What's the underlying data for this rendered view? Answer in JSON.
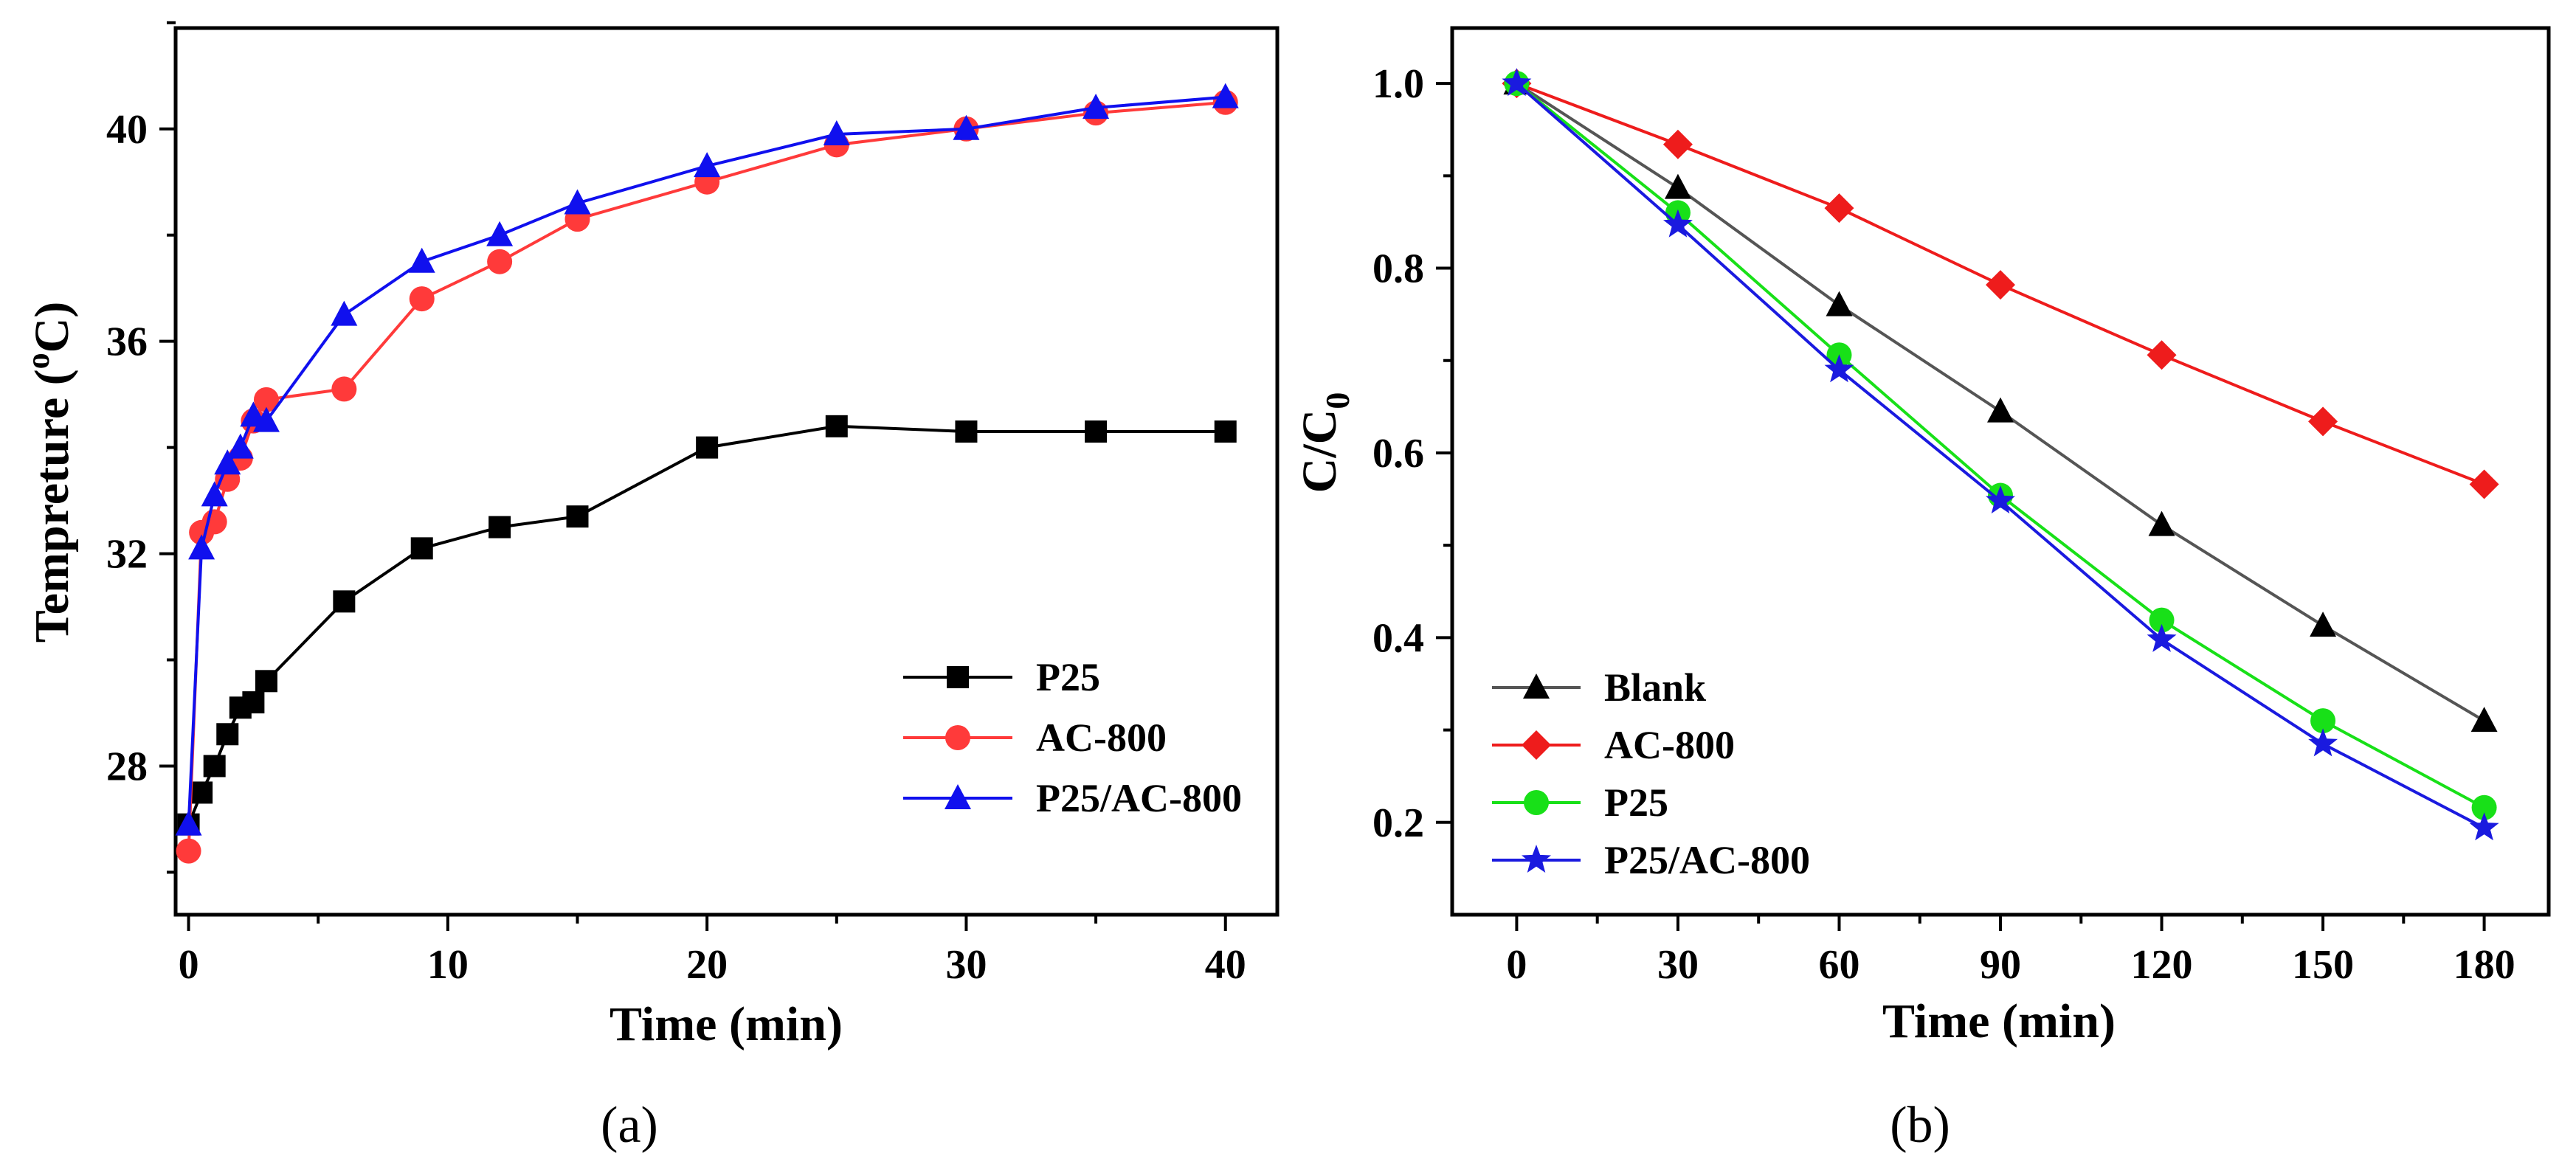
{
  "chart_data": [
    {
      "panel": "(a)",
      "type": "line",
      "xlabel": "Time (min)",
      "ylabel": "Tempreture (",
      "ylabel_sup": "o",
      "ylabel_end": "C)",
      "xlim": [
        -0.5,
        42
      ],
      "ylim": [
        25.2,
        41.9
      ],
      "xticks": [
        0,
        10,
        20,
        30,
        40
      ],
      "yticks": [
        28,
        32,
        36,
        40
      ],
      "legend_position": "bottom-right",
      "series": [
        {
          "name": "P25",
          "color": "#000000",
          "marker": "square",
          "x": [
            0,
            0.5,
            1,
            1.5,
            2,
            2.5,
            3,
            6,
            9,
            12,
            15,
            20,
            25,
            30,
            35,
            40
          ],
          "y": [
            26.9,
            27.5,
            28.0,
            28.6,
            29.1,
            29.2,
            29.6,
            31.1,
            32.1,
            32.5,
            32.7,
            34.0,
            34.4,
            34.3,
            34.3,
            34.3
          ]
        },
        {
          "name": "AC-800",
          "color": "#ff3a3a",
          "marker": "circle",
          "x": [
            0,
            0.5,
            1,
            1.5,
            2,
            2.5,
            3,
            6,
            9,
            12,
            15,
            20,
            25,
            30,
            35,
            40
          ],
          "y": [
            26.4,
            32.4,
            32.6,
            33.4,
            33.8,
            34.5,
            34.9,
            35.1,
            36.8,
            37.5,
            38.3,
            39.0,
            39.7,
            40.0,
            40.3,
            40.5
          ]
        },
        {
          "name": "P25/AC-800",
          "color": "#1010ee",
          "marker": "triangle",
          "x": [
            0,
            0.5,
            1,
            1.5,
            2,
            2.5,
            3,
            6,
            9,
            12,
            15,
            20,
            25,
            30,
            35,
            40
          ],
          "y": [
            26.9,
            32.1,
            33.1,
            33.7,
            34.0,
            34.6,
            34.5,
            36.5,
            37.5,
            38.0,
            38.6,
            39.3,
            39.9,
            40.0,
            40.4,
            40.6
          ]
        }
      ]
    },
    {
      "panel": "(b)",
      "type": "line",
      "xlabel": "Time (min)",
      "ylabel": "C/C",
      "ylabel_sub": "0",
      "xlim": [
        -12,
        192
      ],
      "ylim": [
        0.1,
        1.06
      ],
      "xticks": [
        0,
        30,
        60,
        90,
        120,
        150,
        180
      ],
      "yticks": [
        0.2,
        0.4,
        0.6,
        0.8,
        1.0
      ],
      "ytick_labels": [
        "0.2",
        "0.4",
        "0.6",
        "0.8",
        "1.0"
      ],
      "legend_position": "bottom-left",
      "series": [
        {
          "name": "Blank",
          "color": "#000000",
          "line_color": "#555555",
          "marker": "triangle",
          "x": [
            0,
            30,
            60,
            90,
            120,
            150,
            180
          ],
          "y": [
            1.0,
            0.887,
            0.76,
            0.645,
            0.522,
            0.413,
            0.31
          ]
        },
        {
          "name": "AC-800",
          "color": "#ee1c1c",
          "marker": "diamond",
          "x": [
            0,
            30,
            60,
            90,
            120,
            150,
            180
          ],
          "y": [
            1.0,
            0.934,
            0.865,
            0.782,
            0.706,
            0.634,
            0.566
          ]
        },
        {
          "name": "P25",
          "color": "#18e018",
          "marker": "circle",
          "x": [
            0,
            30,
            60,
            90,
            120,
            150,
            180
          ],
          "y": [
            1.0,
            0.86,
            0.706,
            0.554,
            0.419,
            0.31,
            0.216
          ]
        },
        {
          "name": "P25/AC-800",
          "color": "#1a1adf",
          "marker": "star",
          "x": [
            0,
            30,
            60,
            90,
            120,
            150,
            180
          ],
          "y": [
            1.0,
            0.847,
            0.69,
            0.548,
            0.398,
            0.285,
            0.194
          ]
        }
      ]
    }
  ]
}
